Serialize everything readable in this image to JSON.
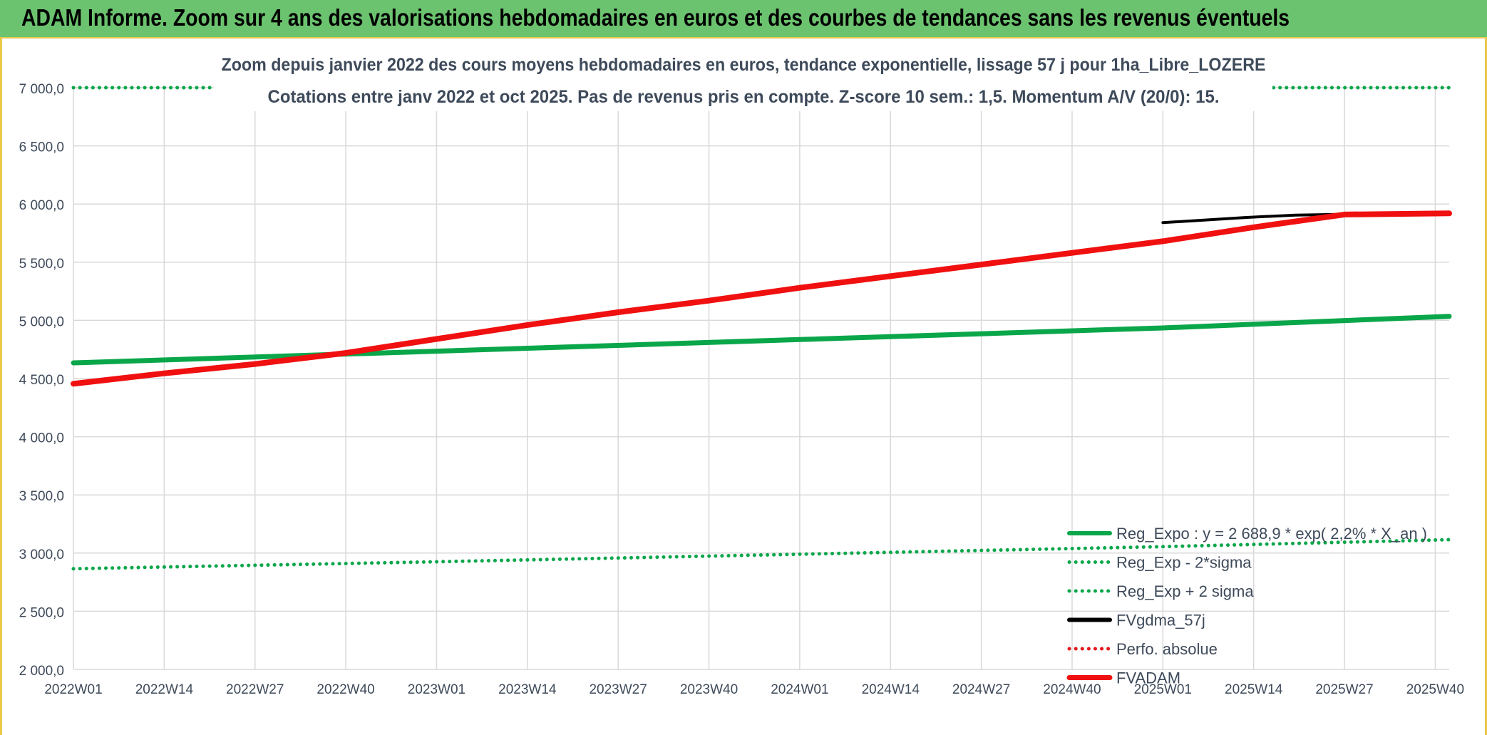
{
  "header": {
    "title": "ADAM Informe. Zoom sur 4 ans des valorisations hebdomadaires en euros et des courbes de tendances sans les revenus éventuels"
  },
  "chart_data": {
    "type": "line",
    "title": "Zoom depuis janvier 2022 des cours moyens hebdomadaires en euros, tendance exponentielle, lissage 57 j pour 1ha_Libre_LOZERE",
    "subtitle": "Cotations entre janv 2022 et oct 2025. Pas de revenus pris en compte. Z-score 10 sem.: 1,5. Momentum A/V (20/0): 15.",
    "xlabel": "",
    "ylabel": "",
    "x_ticks": [
      "2022W01",
      "2022W14",
      "2022W27",
      "2022W40",
      "2023W01",
      "2023W14",
      "2023W27",
      "2023W40",
      "2024W01",
      "2024W14",
      "2024W27",
      "2024W40",
      "2025W01",
      "2025W14",
      "2025W27",
      "2025W40"
    ],
    "y_ticks": [
      "2 000,0",
      "2 500,0",
      "3 000,0",
      "3 500,0",
      "4 000,0",
      "4 500,0",
      "5 000,0",
      "5 500,0",
      "6 000,0",
      "6 500,0",
      "7 000,0"
    ],
    "ylim": [
      2000,
      7000
    ],
    "x_range_weeks": [
      0,
      197
    ],
    "grid": true,
    "legend_position": "bottom-right",
    "series": [
      {
        "name": "Reg_Expo : y = 2 688,9 * exp( 2,2% *  X_an )",
        "color": "#0aa64a",
        "style": "solid",
        "points": [
          [
            0,
            4635
          ],
          [
            52,
            4735
          ],
          [
            104,
            4835
          ],
          [
            156,
            4935
          ],
          [
            197,
            5035
          ]
        ]
      },
      {
        "name": "Reg_Exp - 2*sigma",
        "color": "#0aa64a",
        "style": "dotted",
        "points": [
          [
            0,
            2865
          ],
          [
            52,
            2925
          ],
          [
            104,
            2990
          ],
          [
            156,
            3055
          ],
          [
            197,
            3115
          ]
        ]
      },
      {
        "name": "Reg_Exp + 2 sigma",
        "color": "#0aa64a",
        "style": "dotted",
        "points": [
          [
            0,
            7000
          ],
          [
            197,
            7000
          ]
        ]
      },
      {
        "name": "FVgdma_57j",
        "color": "#000000",
        "style": "solid",
        "points": [
          [
            156,
            5840
          ],
          [
            168,
            5885
          ],
          [
            175,
            5905
          ],
          [
            185,
            5915
          ],
          [
            197,
            5920
          ]
        ]
      },
      {
        "name": "Perfo. absolue",
        "color": "#e41a1c",
        "style": "dotted",
        "points": []
      },
      {
        "name": "FVADAM",
        "color": "#f01010",
        "style": "solid",
        "points": [
          [
            0,
            4455
          ],
          [
            13,
            4545
          ],
          [
            26,
            4625
          ],
          [
            39,
            4720
          ],
          [
            52,
            4840
          ],
          [
            65,
            4960
          ],
          [
            78,
            5070
          ],
          [
            91,
            5170
          ],
          [
            104,
            5280
          ],
          [
            117,
            5380
          ],
          [
            130,
            5480
          ],
          [
            143,
            5580
          ],
          [
            156,
            5680
          ],
          [
            169,
            5800
          ],
          [
            182,
            5910
          ],
          [
            197,
            5920
          ]
        ]
      }
    ]
  }
}
